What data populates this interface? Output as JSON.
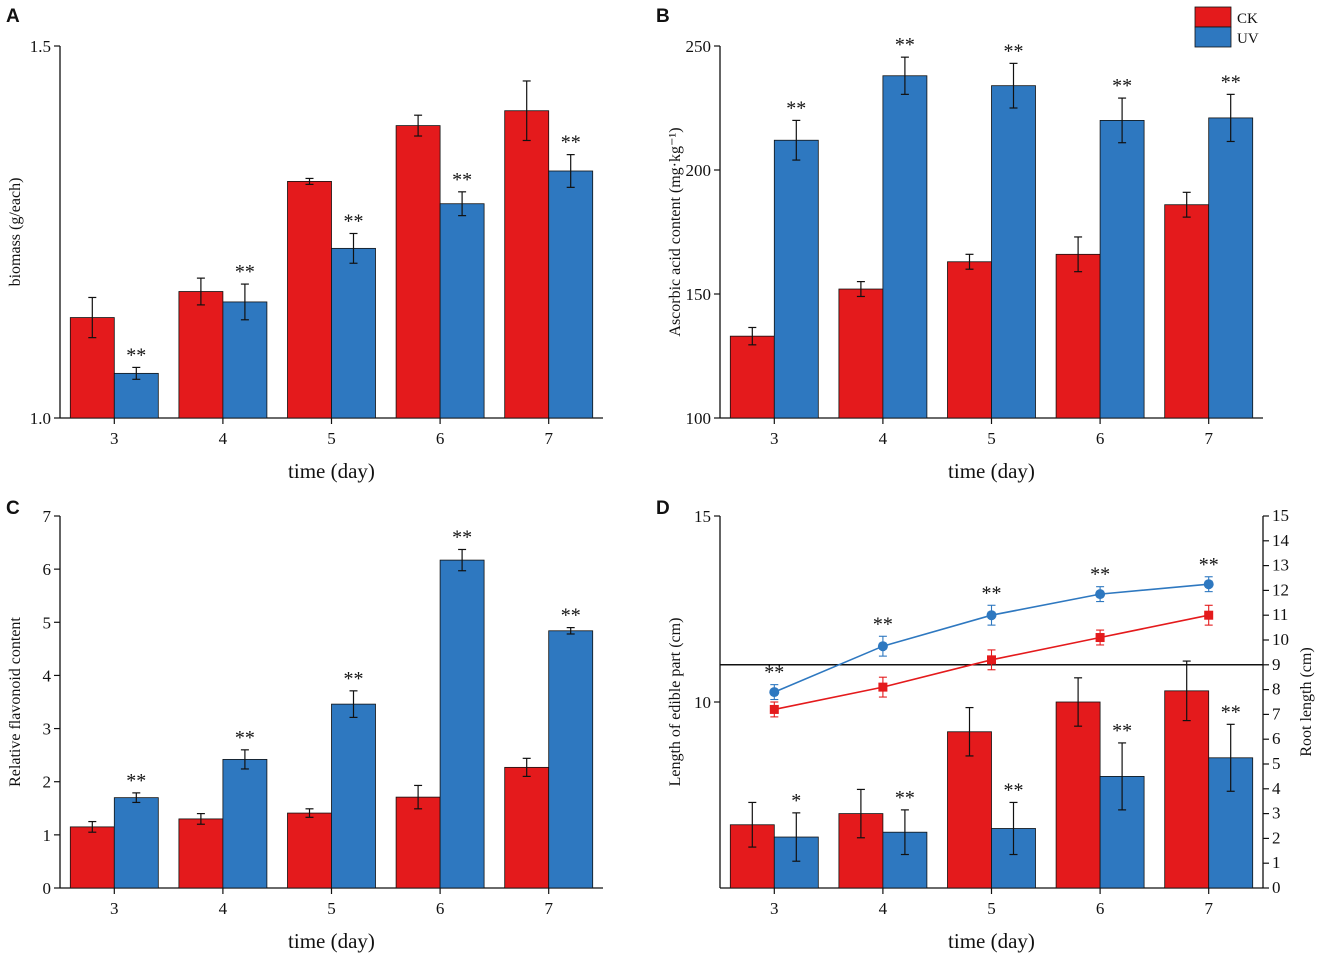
{
  "colors": {
    "ck": "#e41a1c",
    "uv": "#2e78c0",
    "axis": "#111111",
    "ck_line": "#e41a1c",
    "uv_line": "#2e78c0"
  },
  "legend": {
    "ck_label": "CK",
    "uv_label": "UV"
  },
  "chart_data": [
    {
      "panel": "A",
      "type": "bar",
      "title": "",
      "xlabel": "time (day)",
      "ylabel": "biomass (g/each)",
      "ylim": [
        1.0,
        1.5
      ],
      "yticks": [
        1.0,
        1.5
      ],
      "ytick_labels": [
        "1.0",
        "1.5"
      ],
      "categories": [
        "3",
        "4",
        "5",
        "6",
        "7"
      ],
      "series": [
        {
          "name": "CK",
          "values": [
            1.135,
            1.17,
            1.318,
            1.393,
            1.413
          ],
          "errors": [
            0.027,
            0.018,
            0.004,
            0.014,
            0.04
          ],
          "annotations": [
            "",
            "",
            "",
            "",
            ""
          ]
        },
        {
          "name": "UV",
          "values": [
            1.06,
            1.156,
            1.228,
            1.288,
            1.332
          ],
          "errors": [
            0.008,
            0.024,
            0.02,
            0.016,
            0.022
          ],
          "annotations": [
            "**",
            "**",
            "**",
            "**",
            "**"
          ]
        }
      ]
    },
    {
      "panel": "B",
      "type": "bar",
      "title": "",
      "xlabel": "time (day)",
      "ylabel": "Ascorbic acid content (mg·kg⁻¹)",
      "ylim": [
        100,
        250
      ],
      "yticks": [
        100,
        150,
        200,
        250
      ],
      "ytick_labels": [
        "100",
        "150",
        "200",
        "250"
      ],
      "categories": [
        "3",
        "4",
        "5",
        "6",
        "7"
      ],
      "series": [
        {
          "name": "CK",
          "values": [
            133,
            152,
            163,
            166,
            186
          ],
          "errors": [
            3.5,
            3,
            3,
            7,
            5
          ],
          "annotations": [
            "",
            "",
            "",
            "",
            ""
          ]
        },
        {
          "name": "UV",
          "values": [
            212,
            238,
            234,
            220,
            221
          ],
          "errors": [
            8,
            7.5,
            9,
            9,
            9.5
          ],
          "annotations": [
            "**",
            "**",
            "**",
            "**",
            "**"
          ]
        }
      ],
      "legend_position": "top-right"
    },
    {
      "panel": "C",
      "type": "bar",
      "title": "",
      "xlabel": "time (day)",
      "ylabel": "Relative flavonoid content",
      "ylim": [
        0,
        7
      ],
      "yticks": [
        0,
        1,
        2,
        3,
        4,
        5,
        6,
        7
      ],
      "ytick_labels": [
        "0",
        "1",
        "2",
        "3",
        "4",
        "5",
        "6",
        "7"
      ],
      "categories": [
        "3",
        "4",
        "5",
        "6",
        "7"
      ],
      "series": [
        {
          "name": "CK",
          "values": [
            1.15,
            1.3,
            1.41,
            1.71,
            2.27
          ],
          "errors": [
            0.1,
            0.1,
            0.08,
            0.22,
            0.17
          ],
          "annotations": [
            "",
            "",
            "",
            "",
            ""
          ]
        },
        {
          "name": "UV",
          "values": [
            1.7,
            2.42,
            3.46,
            6.17,
            4.84
          ],
          "errors": [
            0.09,
            0.18,
            0.25,
            0.2,
            0.06
          ],
          "annotations": [
            "**",
            "**",
            "**",
            "**",
            "**"
          ]
        }
      ]
    },
    {
      "panel": "D",
      "type": "bar+line",
      "title": "",
      "xlabel": "time (day)",
      "ylabel": "Length of edible part (cm)",
      "ylim": [
        5,
        15
      ],
      "yticks": [
        10,
        15
      ],
      "ytick_labels": [
        "10",
        "15"
      ],
      "y2label": "Root length (cm)",
      "y2lim": [
        0,
        15
      ],
      "y2ticks": [
        0,
        1,
        2,
        3,
        4,
        5,
        6,
        7,
        8,
        9,
        10,
        11,
        12,
        13,
        14,
        15
      ],
      "y2tick_labels": [
        "0",
        "1",
        "2",
        "3",
        "4",
        "5",
        "6",
        "7",
        "8",
        "9",
        "10",
        "11",
        "12",
        "13",
        "14",
        "15"
      ],
      "categories": [
        "3",
        "4",
        "5",
        "6",
        "7"
      ],
      "series": [
        {
          "name": "CK",
          "type": "bar",
          "values": [
            6.7,
            7.0,
            9.2,
            10.0,
            10.3
          ],
          "errors": [
            0.6,
            0.65,
            0.65,
            0.65,
            0.8
          ],
          "annotations": [
            "",
            "",
            "",
            "",
            ""
          ]
        },
        {
          "name": "UV",
          "type": "bar",
          "values": [
            6.37,
            6.5,
            6.6,
            8.0,
            8.5
          ],
          "errors": [
            0.65,
            0.6,
            0.7,
            0.9,
            0.9
          ],
          "annotations": [
            "*",
            "**",
            "**",
            "**",
            "**"
          ]
        },
        {
          "name": "CK",
          "type": "line",
          "axis": "right",
          "values": [
            7.2,
            8.1,
            9.2,
            10.1,
            11.0
          ],
          "errors": [
            0.3,
            0.4,
            0.4,
            0.3,
            0.4
          ],
          "annotations": [
            "",
            "",
            "",
            "",
            ""
          ]
        },
        {
          "name": "UV",
          "type": "line",
          "axis": "right",
          "values": [
            7.9,
            9.75,
            11.0,
            11.85,
            12.25
          ],
          "errors": [
            0.3,
            0.4,
            0.4,
            0.3,
            0.3
          ],
          "annotations": [
            "**",
            "**",
            "**",
            "**",
            "**"
          ]
        }
      ],
      "reference_line_y2": 9
    }
  ]
}
